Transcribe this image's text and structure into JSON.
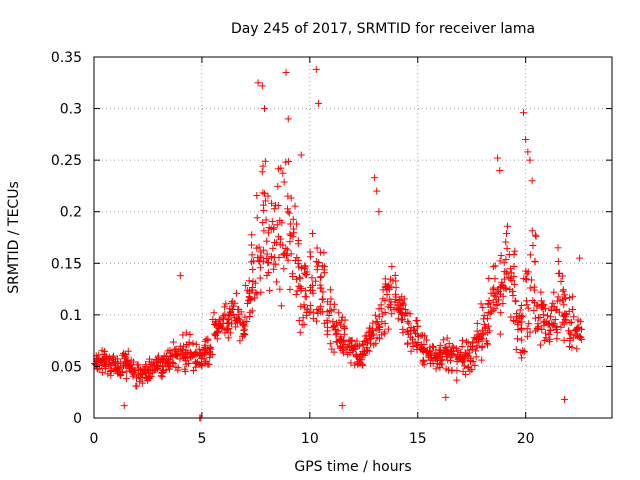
{
  "chart_data": {
    "type": "scatter",
    "title": "Day 245 of 2017, SRMTID for receiver lama",
    "xlabel": "GPS time / hours",
    "ylabel": "SRMTID / TECUs",
    "xlim": [
      0,
      24
    ],
    "ylim": [
      0,
      0.35
    ],
    "xticks": [
      0,
      5,
      10,
      15,
      20
    ],
    "xtick_labels": [
      "0",
      "5",
      "10",
      "15",
      "20"
    ],
    "yticks": [
      0,
      0.05,
      0.1,
      0.15,
      0.2,
      0.25,
      0.3,
      0.35
    ],
    "ytick_labels": [
      "0",
      "0.05",
      "0.1",
      "0.15",
      "0.2",
      "0.25",
      "0.3",
      "0.35"
    ],
    "grid": true,
    "marker": "+",
    "color": "#ff0000",
    "series": [
      {
        "name": "SRMTID",
        "x_start": 0,
        "x_step": 0.25,
        "y_center": [
          0.055,
          0.058,
          0.052,
          0.05,
          0.048,
          0.055,
          0.05,
          0.045,
          0.042,
          0.045,
          0.048,
          0.05,
          0.052,
          0.055,
          0.06,
          0.058,
          0.062,
          0.065,
          0.06,
          0.058,
          0.06,
          0.062,
          0.085,
          0.09,
          0.09,
          0.1,
          0.1,
          0.09,
          0.12,
          0.14,
          0.17,
          0.2,
          0.16,
          0.17,
          0.18,
          0.18,
          0.18,
          0.15,
          0.12,
          0.12,
          0.14,
          0.13,
          0.12,
          0.1,
          0.09,
          0.08,
          0.08,
          0.07,
          0.065,
          0.06,
          0.07,
          0.08,
          0.09,
          0.11,
          0.12,
          0.12,
          0.11,
          0.1,
          0.085,
          0.08,
          0.07,
          0.065,
          0.06,
          0.06,
          0.065,
          0.06,
          0.06,
          0.055,
          0.055,
          0.06,
          0.07,
          0.08,
          0.09,
          0.1,
          0.12,
          0.13,
          0.14,
          0.13,
          0.1,
          0.095,
          0.12,
          0.14,
          0.11,
          0.1,
          0.09,
          0.1,
          0.12,
          0.1,
          0.09,
          0.08,
          0.085
        ],
        "y_spread": [
          0.025,
          0.025,
          0.02,
          0.02,
          0.02,
          0.02,
          0.02,
          0.02,
          0.02,
          0.02,
          0.02,
          0.02,
          0.02,
          0.02,
          0.025,
          0.025,
          0.03,
          0.03,
          0.03,
          0.025,
          0.025,
          0.025,
          0.025,
          0.025,
          0.03,
          0.03,
          0.03,
          0.035,
          0.05,
          0.07,
          0.1,
          0.12,
          0.09,
          0.1,
          0.11,
          0.1,
          0.1,
          0.09,
          0.07,
          0.07,
          0.08,
          0.07,
          0.07,
          0.05,
          0.04,
          0.035,
          0.035,
          0.03,
          0.03,
          0.025,
          0.03,
          0.035,
          0.04,
          0.06,
          0.06,
          0.05,
          0.04,
          0.04,
          0.035,
          0.035,
          0.03,
          0.03,
          0.025,
          0.025,
          0.03,
          0.03,
          0.025,
          0.025,
          0.025,
          0.03,
          0.035,
          0.04,
          0.04,
          0.05,
          0.07,
          0.07,
          0.08,
          0.07,
          0.05,
          0.06,
          0.08,
          0.09,
          0.06,
          0.05,
          0.04,
          0.05,
          0.06,
          0.05,
          0.05,
          0.04,
          0.04
        ],
        "points_per_step": 14,
        "x_end": 22.6,
        "outliers": [
          [
            4.0,
            0.138
          ],
          [
            4.9,
            0.0
          ],
          [
            4.95,
            0.0
          ],
          [
            7.6,
            0.325
          ],
          [
            7.8,
            0.322
          ],
          [
            7.9,
            0.3
          ],
          [
            8.9,
            0.335
          ],
          [
            9.0,
            0.29
          ],
          [
            9.6,
            0.255
          ],
          [
            10.3,
            0.338
          ],
          [
            10.4,
            0.305
          ],
          [
            13.0,
            0.233
          ],
          [
            13.1,
            0.22
          ],
          [
            13.2,
            0.2
          ],
          [
            18.7,
            0.252
          ],
          [
            18.8,
            0.24
          ],
          [
            19.9,
            0.296
          ],
          [
            20.0,
            0.27
          ],
          [
            20.1,
            0.258
          ],
          [
            20.2,
            0.25
          ],
          [
            20.3,
            0.23
          ],
          [
            21.5,
            0.165
          ],
          [
            22.5,
            0.155
          ],
          [
            1.4,
            0.012
          ],
          [
            11.5,
            0.012
          ],
          [
            16.3,
            0.02
          ],
          [
            21.8,
            0.018
          ]
        ]
      }
    ]
  }
}
